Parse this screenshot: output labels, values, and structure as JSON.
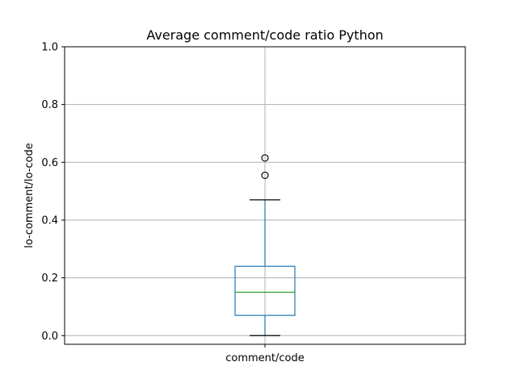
{
  "chart_data": {
    "type": "box",
    "title": "Average comment/code ratio Python",
    "xlabel": "",
    "ylabel": "lo-comment/lo-code",
    "ylim": [
      -0.03,
      1.0
    ],
    "yticks": [
      0.0,
      0.2,
      0.4,
      0.6,
      0.8,
      1.0
    ],
    "ytick_labels": [
      "0.0",
      "0.2",
      "0.4",
      "0.6",
      "0.8",
      "1.0"
    ],
    "grid": true,
    "categories": [
      "comment/code"
    ],
    "boxes": [
      {
        "name": "comment/code",
        "whisker_low": 0.0,
        "q1": 0.07,
        "median": 0.15,
        "q3": 0.24,
        "whisker_high": 0.47,
        "outliers": [
          0.555,
          0.615
        ]
      }
    ],
    "colors": {
      "box": "#1f77b4",
      "median": "#2ca02c",
      "whisker_cap": "#000000",
      "grid": "#b0b0b0",
      "axes": "#000000"
    }
  }
}
